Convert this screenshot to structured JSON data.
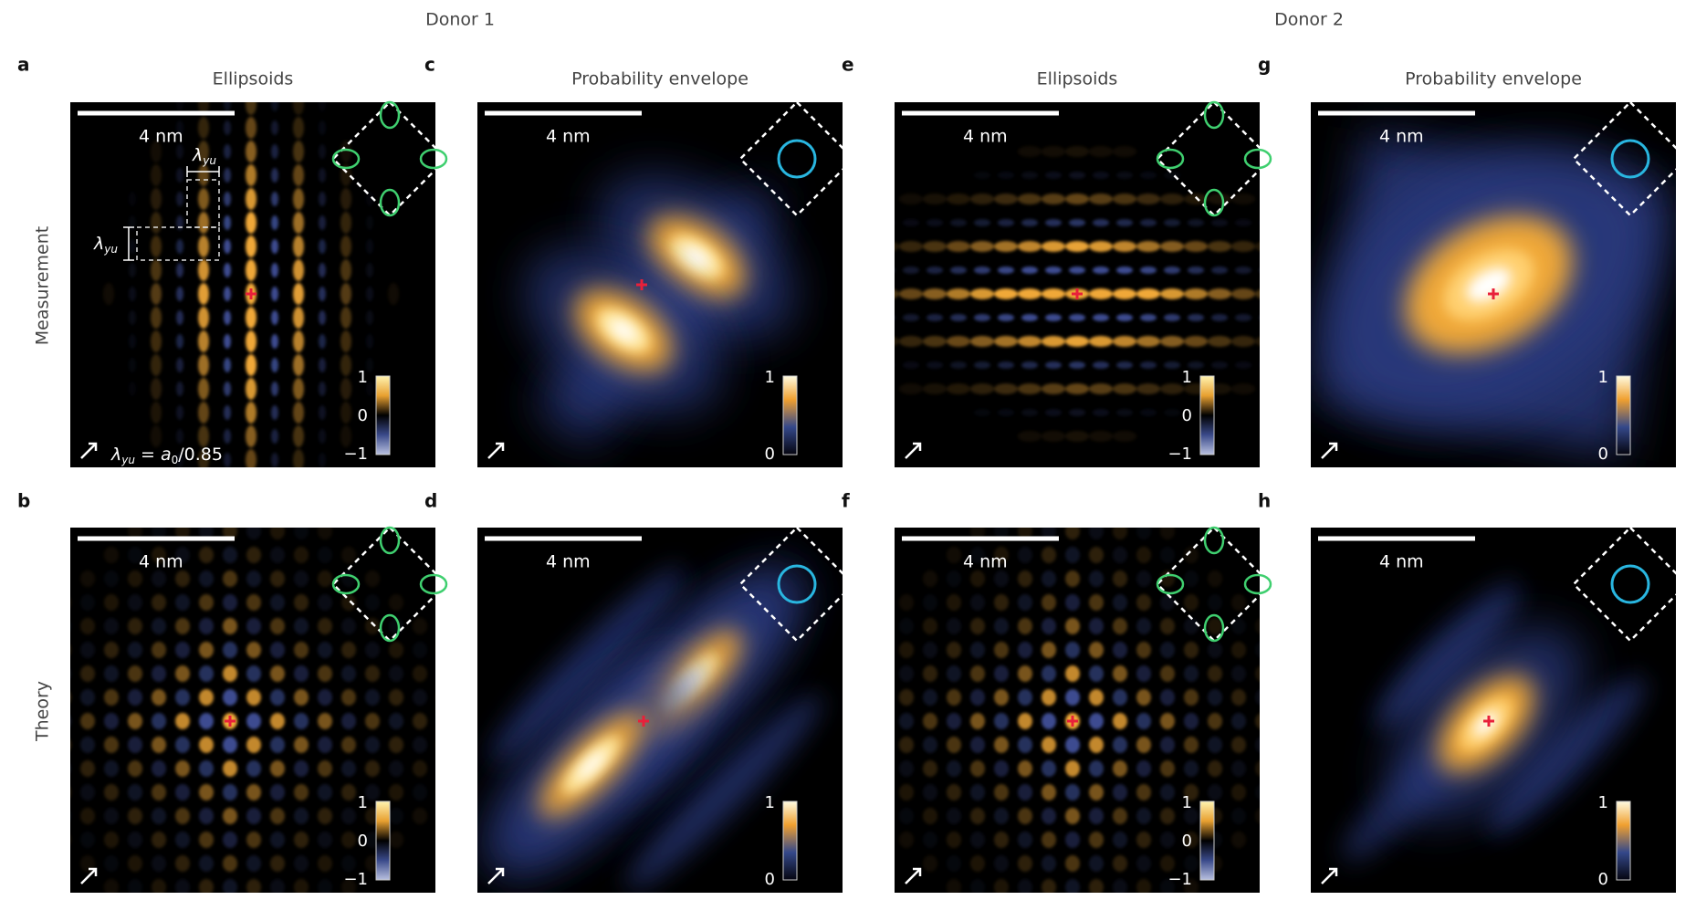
{
  "header": {
    "donors": [
      "Donor 1",
      "Donor 2"
    ]
  },
  "row_labels": [
    "Measurement",
    "Theory"
  ],
  "panels": [
    {
      "letter": "a",
      "title": "Ellipsoids",
      "scale_bar": "4 nm",
      "colorbar": [
        "1",
        "0",
        "−1"
      ]
    },
    {
      "letter": "b",
      "scale_bar": "4 nm",
      "colorbar": [
        "1",
        "0",
        "−1"
      ]
    },
    {
      "letter": "c",
      "title": "Probability envelope",
      "scale_bar": "4 nm",
      "colorbar": [
        "1",
        "0"
      ]
    },
    {
      "letter": "d",
      "scale_bar": "4 nm",
      "colorbar": [
        "1",
        "0"
      ]
    },
    {
      "letter": "e",
      "title": "Ellipsoids",
      "scale_bar": "4 nm",
      "colorbar": [
        "1",
        "0",
        "−1"
      ]
    },
    {
      "letter": "f",
      "scale_bar": "4 nm",
      "colorbar": [
        "1",
        "0",
        "−1"
      ]
    },
    {
      "letter": "g",
      "title": "Probability envelope",
      "scale_bar": "4 nm",
      "colorbar": [
        "1",
        "0"
      ]
    },
    {
      "letter": "h",
      "scale_bar": "4 nm",
      "colorbar": [
        "1",
        "0"
      ]
    }
  ],
  "annotations": {
    "lambda_symbol": "λ",
    "lambda_subscript": "yu",
    "formula_rhs": " = a",
    "formula_subscript": "0",
    "formula_tail": "/0.85"
  }
}
